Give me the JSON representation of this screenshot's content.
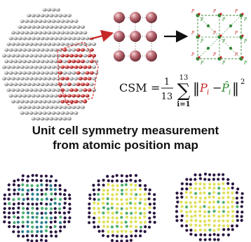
{
  "headline": {
    "line1": "Unit cell symmetry measurement",
    "line2": "from atomic position map"
  },
  "equation": {
    "lhs": "CSM",
    "equals": "=",
    "numerator": "1",
    "denominator": "13",
    "sum_upper": "13",
    "sum_lower": "i=1",
    "sum_symbol": "∑",
    "term_p": "P",
    "term_p_sub": "i",
    "term_minus": "−",
    "term_phat": "P̂",
    "term_phat_sub": "i",
    "norm_open": "‖",
    "norm_close": "‖",
    "exponent": "2"
  },
  "unit_cell_labels": {
    "p": "P",
    "phat": "P̂"
  },
  "colors": {
    "atom_grey": "#9a9a9a",
    "atom_red": "#cc2e2e",
    "atom_pink": "#b05a66",
    "arrow_red": "#c62828",
    "arrow_black": "#111111",
    "term_p_color": "#c62828",
    "term_phat_color": "#2e8b2e",
    "map_dark": "#2a1540",
    "map_green": "#4fae72",
    "map_yellow": "#dfe05a",
    "map_teal": "#2c7f8e"
  },
  "maps": [
    {
      "name": "map-left",
      "symmetry_mix": 0.45
    },
    {
      "name": "map-middle",
      "symmetry_mix": 0.8
    },
    {
      "name": "map-right",
      "symmetry_mix": 0.9
    }
  ],
  "icons": [
    "arrow-right-icon",
    "arrow-right-icon"
  ]
}
